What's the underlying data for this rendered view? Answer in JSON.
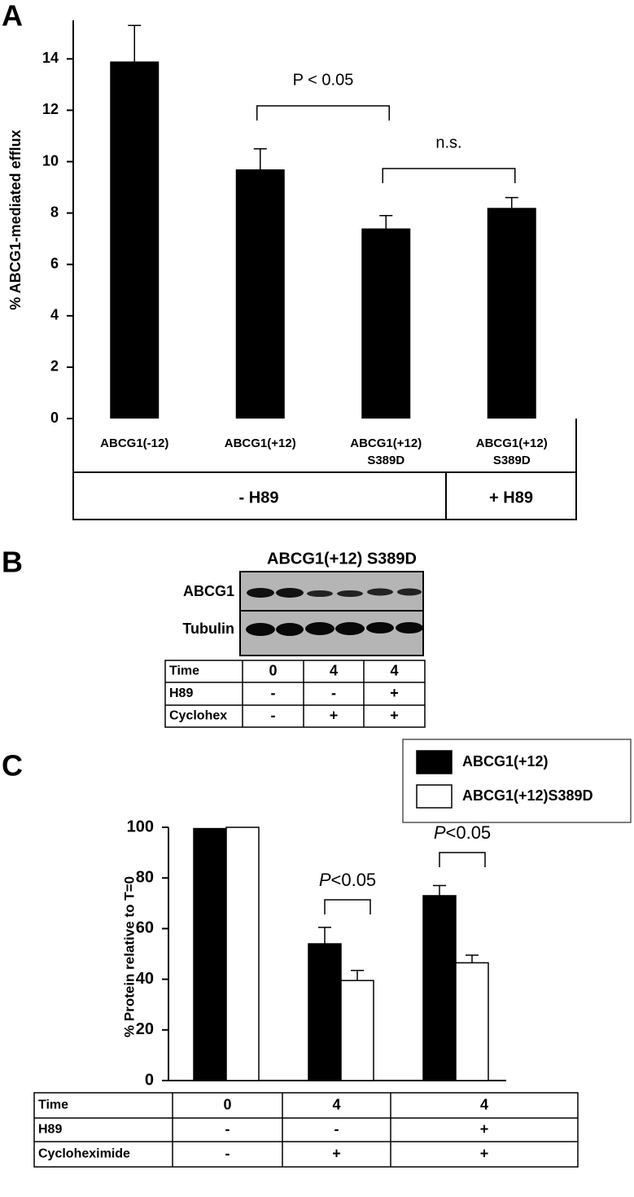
{
  "panel_labels": [
    "A",
    "B",
    "C"
  ],
  "chart_data": [
    {
      "type": "bar",
      "y_label": "% ABCG1-mediated efflux",
      "categories": [
        "ABCG1(-12)",
        "ABCG1(+12)",
        "ABCG1(+12) S389D",
        "ABCG1(+12) S389D"
      ],
      "values": [
        13.9,
        9.7,
        7.4,
        8.2
      ],
      "errors": [
        1.4,
        0.8,
        0.5,
        0.4
      ],
      "color": "#000000",
      "ylim": [
        0,
        15.5
      ],
      "yticks": [
        0,
        2,
        4,
        6,
        8,
        10,
        12,
        14
      ],
      "groups": [
        "- H89",
        "+ H89"
      ],
      "annotations": [
        "P < 0.05",
        "n.s."
      ]
    },
    {
      "type": "bar",
      "y_label": "% Protein relative to T=0",
      "series": [
        {
          "name": "ABCG1(+12)",
          "color": "#000000",
          "values": [
            99.5,
            54,
            73
          ],
          "errors": [
            null,
            6.5,
            4
          ]
        },
        {
          "name": "ABCG1(+12)S389D",
          "color": "#ffffff",
          "values": [
            100,
            39.5,
            46.5
          ],
          "errors": [
            null,
            4,
            3
          ]
        }
      ],
      "ylim": [
        0,
        100
      ],
      "yticks": [
        0,
        20,
        40,
        60,
        80,
        100
      ],
      "annotations": [
        "P<0.05",
        "P<0.05"
      ],
      "table": {
        "rows": [
          [
            "Time",
            "0",
            "4",
            "4"
          ],
          [
            "H89",
            "-",
            "-",
            "+"
          ],
          [
            "Cycloheximide",
            "-",
            "+",
            "+"
          ]
        ]
      }
    }
  ],
  "blot": {
    "header": "ABCG1(+12) S389D",
    "rows": [
      "ABCG1",
      "Tubulin"
    ],
    "table": {
      "rows": [
        [
          "Time",
          "0",
          "4",
          "4"
        ],
        [
          "H89",
          "-",
          "-",
          "+"
        ],
        [
          "Cyclohex",
          "-",
          "+",
          "+"
        ]
      ]
    }
  }
}
